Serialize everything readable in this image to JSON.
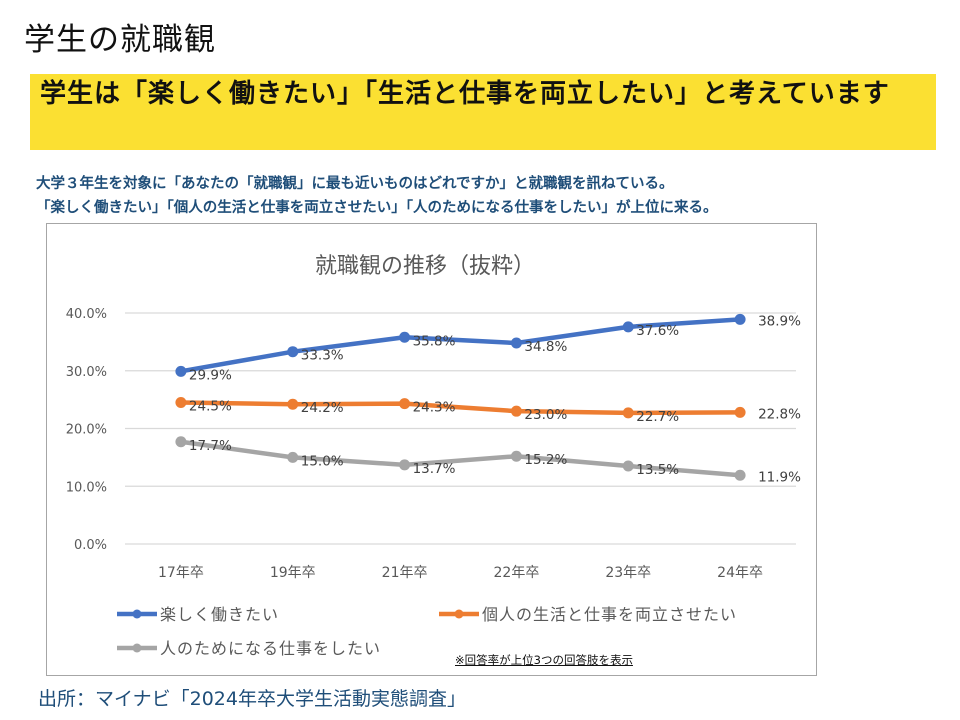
{
  "slide": {
    "title": "学生の就職観",
    "banner": "学生は「楽しく働きたい」「生活と仕事を両立したい」と考えています",
    "description": [
      "大学３年生を対象に「あなたの「就職観」に最も近いものはどれですか」と就職観を訊ねている。",
      "「楽しく働きたい」「個人の生活と仕事を両立させたい」「人のためになる仕事をしたい」が上位に来る。"
    ],
    "note": "※回答率が上位3つの回答肢を表示",
    "source": "出所：マイナビ「2024年卒大学生活動実態調査」",
    "colors": {
      "banner": "#fbe032",
      "description_text": "#1f4e79",
      "source_text": "#1f4e79"
    }
  },
  "chart_data": {
    "type": "line",
    "title": "就職観の推移（抜粋）",
    "xlabel": "",
    "ylabel": "",
    "categories": [
      "17年卒",
      "19年卒",
      "21年卒",
      "22年卒",
      "23年卒",
      "24年卒"
    ],
    "ylim": [
      0,
      40
    ],
    "yticks": [
      0,
      10,
      20,
      30,
      40
    ],
    "ytick_labels": [
      "0.0%",
      "10.0%",
      "20.0%",
      "30.0%",
      "40.0%"
    ],
    "grid": true,
    "legend_position": "bottom",
    "series": [
      {
        "name": "楽しく働きたい",
        "color": "#4472c4",
        "values": [
          29.9,
          33.3,
          35.8,
          34.8,
          37.6,
          38.9
        ],
        "labels": [
          "29.9%",
          "33.3%",
          "35.8%",
          "34.8%",
          "37.6%",
          "38.9%"
        ]
      },
      {
        "name": "個人の生活と仕事を両立させたい",
        "color": "#ed7d31",
        "values": [
          24.5,
          24.2,
          24.3,
          23.0,
          22.7,
          22.8
        ],
        "labels": [
          "24.5%",
          "24.2%",
          "24.3%",
          "23.0%",
          "22.7%",
          "22.8%"
        ]
      },
      {
        "name": "人のためになる仕事をしたい",
        "color": "#a5a5a5",
        "values": [
          17.7,
          15.0,
          13.7,
          15.2,
          13.5,
          11.9
        ],
        "labels": [
          "17.7%",
          "15.0%",
          "13.7%",
          "15.2%",
          "13.5%",
          "11.9%"
        ]
      }
    ]
  }
}
